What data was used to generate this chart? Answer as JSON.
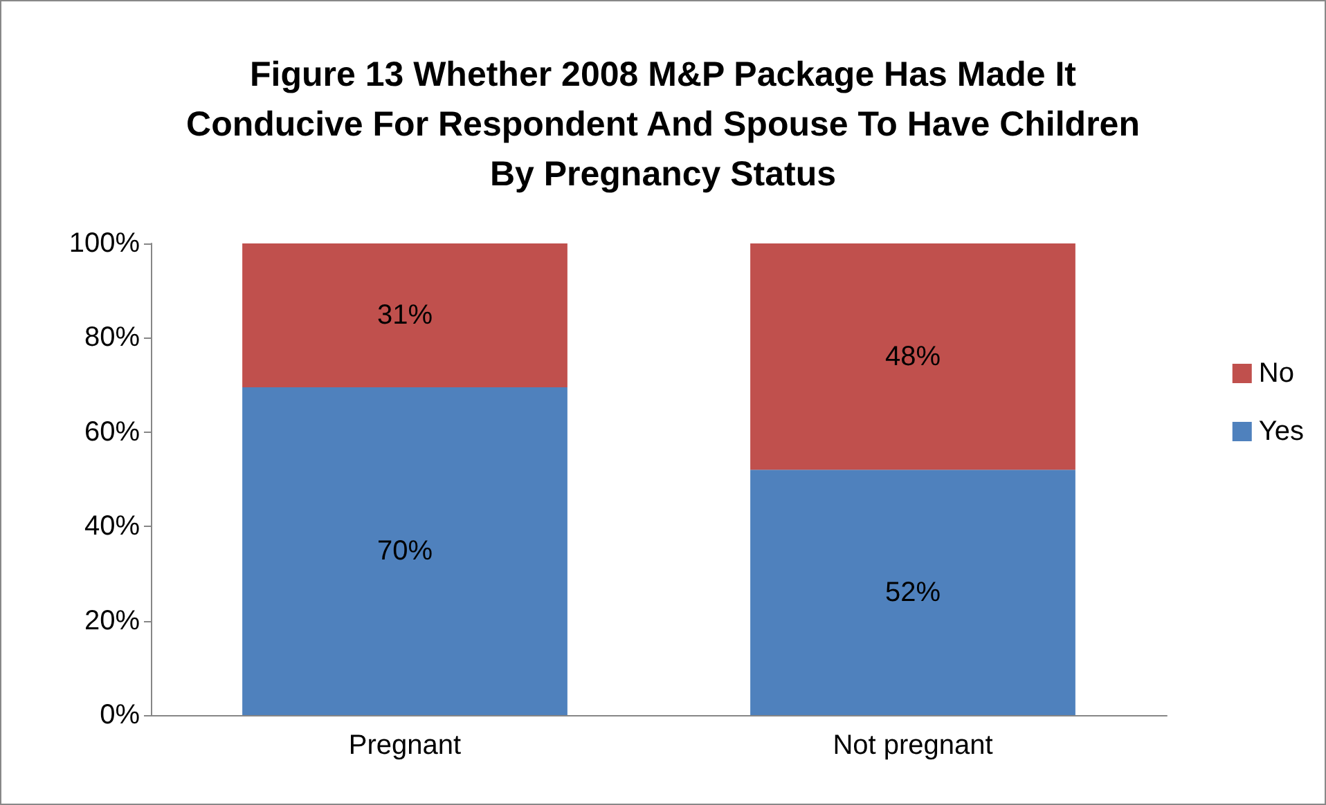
{
  "chart_data": {
    "type": "bar",
    "title": "Figure 13 Whether 2008 M&P Package Has Made It\nConducive For Respondent And Spouse To Have Children\nBy Pregnancy Status",
    "categories": [
      "Pregnant",
      "Not pregnant"
    ],
    "stacked": true,
    "series": [
      {
        "name": "Yes",
        "color": "#4f81bd",
        "values": [
          69.5,
          52
        ],
        "value_labels": [
          "70%",
          "52%"
        ]
      },
      {
        "name": "No",
        "color": "#c0504d",
        "values": [
          30.5,
          48
        ],
        "value_labels": [
          "31%",
          "48%"
        ]
      }
    ],
    "ylim": [
      0,
      100
    ],
    "yticks": [
      {
        "value": 0,
        "label": "0%"
      },
      {
        "value": 20,
        "label": "20%"
      },
      {
        "value": 40,
        "label": "40%"
      },
      {
        "value": 60,
        "label": "60%"
      },
      {
        "value": 80,
        "label": "80%"
      },
      {
        "value": 100,
        "label": "100%"
      }
    ],
    "grid": false,
    "legend": "right"
  }
}
